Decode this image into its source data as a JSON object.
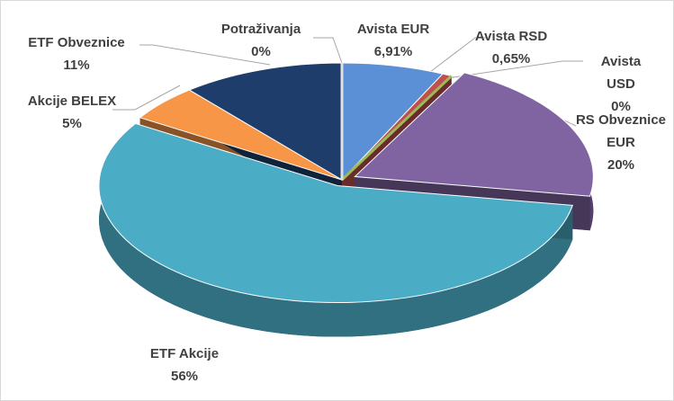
{
  "chart_data": {
    "type": "pie",
    "categories": [
      "Avista EUR",
      "Avista RSD",
      "Avista USD",
      "RS Obveznice EUR",
      "ETF Akcije",
      "Akcije BELEX",
      "ETF Obveznice",
      "Potraživanja"
    ],
    "values": [
      6.91,
      0.65,
      0,
      20,
      56,
      5,
      11,
      0
    ],
    "value_labels": [
      "6,91%",
      "0,65%",
      "0%",
      "20%",
      "56%",
      "5%",
      "11%",
      "0%"
    ],
    "colors": [
      "#5b8fd6",
      "#c0504d",
      "#9bbb59",
      "#8064a2",
      "#4bacc6",
      "#f79646",
      "#1f3d6b",
      "#f2f2f2"
    ]
  }
}
